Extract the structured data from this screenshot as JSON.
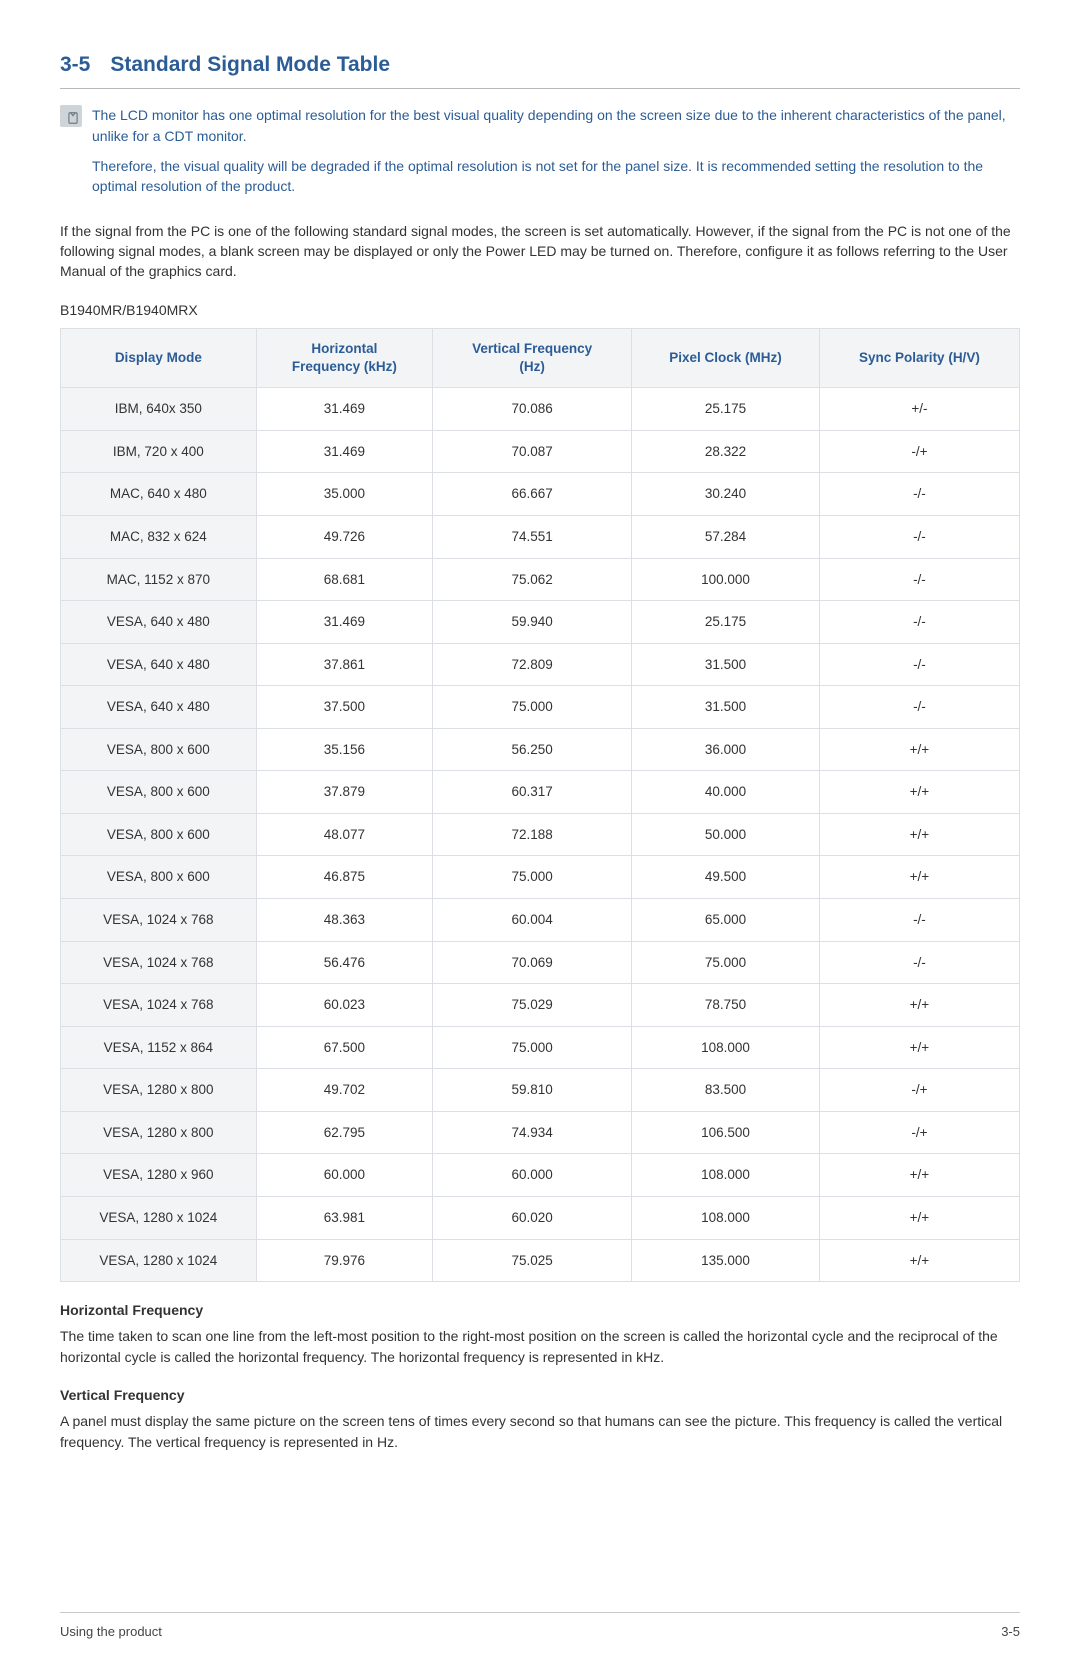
{
  "heading": {
    "num": "3-5",
    "title": "Standard Signal Mode Table"
  },
  "note": {
    "p1": "The LCD monitor has one optimal resolution for the best visual quality depending on the screen size due to the inherent characteristics of the panel, unlike for a CDT monitor.",
    "p2": "Therefore, the visual quality will be degraded if the optimal resolution is not set for the panel size. It is recommended setting the resolution to the optimal resolution of the product."
  },
  "intro": "If the signal from the PC is one of the following standard signal modes, the screen is set automatically. However, if the signal from the PC is not one of the following signal modes, a blank screen may be displayed or only the Power LED may be turned on. Therefore, configure it as follows referring to the User Manual of the graphics card.",
  "model": "B1940MR/B1940MRX",
  "table": {
    "columns": [
      {
        "l1": "Display Mode",
        "l2": ""
      },
      {
        "l1": "Horizontal",
        "l2": "Frequency (kHz)"
      },
      {
        "l1": "Vertical Frequency",
        "l2": "(Hz)"
      },
      {
        "l1": "Pixel Clock (MHz)",
        "l2": ""
      },
      {
        "l1": "Sync Polarity (H/V)",
        "l2": ""
      }
    ],
    "rows": [
      [
        "IBM, 640x 350",
        "31.469",
        "70.086",
        "25.175",
        "+/-"
      ],
      [
        "IBM, 720 x 400",
        "31.469",
        "70.087",
        "28.322",
        "-/+"
      ],
      [
        "MAC, 640 x 480",
        "35.000",
        "66.667",
        "30.240",
        "-/-"
      ],
      [
        "MAC, 832 x 624",
        "49.726",
        "74.551",
        "57.284",
        "-/-"
      ],
      [
        "MAC, 1152 x 870",
        "68.681",
        "75.062",
        "100.000",
        "-/-"
      ],
      [
        "VESA, 640 x 480",
        "31.469",
        "59.940",
        "25.175",
        "-/-"
      ],
      [
        "VESA, 640 x 480",
        "37.861",
        "72.809",
        "31.500",
        "-/-"
      ],
      [
        "VESA, 640 x 480",
        "37.500",
        "75.000",
        "31.500",
        "-/-"
      ],
      [
        "VESA, 800 x 600",
        "35.156",
        "56.250",
        "36.000",
        "+/+"
      ],
      [
        "VESA, 800 x 600",
        "37.879",
        "60.317",
        "40.000",
        "+/+"
      ],
      [
        "VESA, 800 x 600",
        "48.077",
        "72.188",
        "50.000",
        "+/+"
      ],
      [
        "VESA, 800 x 600",
        "46.875",
        "75.000",
        "49.500",
        "+/+"
      ],
      [
        "VESA, 1024 x 768",
        "48.363",
        "60.004",
        "65.000",
        "-/-"
      ],
      [
        "VESA, 1024 x 768",
        "56.476",
        "70.069",
        "75.000",
        "-/-"
      ],
      [
        "VESA, 1024 x 768",
        "60.023",
        "75.029",
        "78.750",
        "+/+"
      ],
      [
        "VESA, 1152 x 864",
        "67.500",
        "75.000",
        "108.000",
        "+/+"
      ],
      [
        "VESA, 1280 x 800",
        "49.702",
        "59.810",
        "83.500",
        "-/+"
      ],
      [
        "VESA, 1280 x 800",
        "62.795",
        "74.934",
        "106.500",
        "-/+"
      ],
      [
        "VESA, 1280 x 960",
        "60.000",
        "60.000",
        "108.000",
        "+/+"
      ],
      [
        "VESA, 1280 x 1024",
        "63.981",
        "60.020",
        "108.000",
        "+/+"
      ],
      [
        "VESA, 1280 x 1024",
        "79.976",
        "75.025",
        "135.000",
        "+/+"
      ]
    ]
  },
  "hf": {
    "title": "Horizontal Frequency",
    "body": "The time taken to scan one line from the left-most position to the right-most position on the screen is called the horizontal cycle and the reciprocal of the horizontal cycle is called the horizontal frequency. The horizontal frequency is represented in kHz."
  },
  "vf": {
    "title": "Vertical Frequency",
    "body": "A panel must display the same picture on the screen tens of times every second so that humans can see the picture. This frequency is called the vertical frequency. The vertical frequency is represented in Hz."
  },
  "footer": {
    "left": "Using the product",
    "right": "3-5"
  },
  "colors": {
    "accent": "#2b5c96",
    "header_bg": "#f3f4f6",
    "border": "#dcdfe3",
    "text": "#333333"
  }
}
